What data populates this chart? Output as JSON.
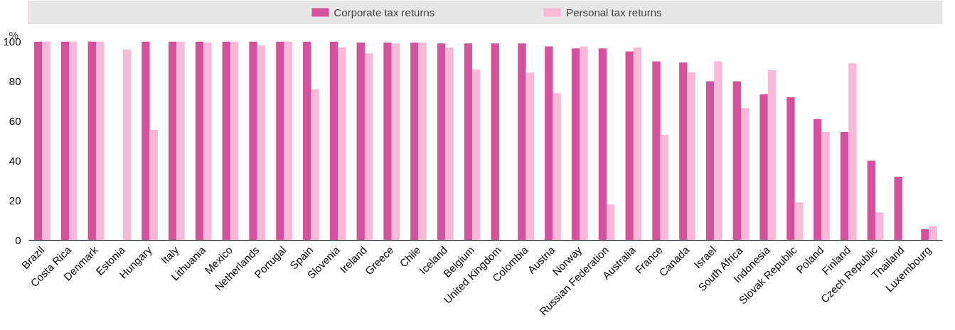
{
  "chart_data": {
    "type": "bar",
    "ylabel": "%",
    "categories": [
      "Brazil",
      "Costa Rica",
      "Denmark",
      "Estonia",
      "Hungary",
      "Italy",
      "Lithuania",
      "Mexico",
      "Netherlands",
      "Portugal",
      "Spain",
      "Slovenia",
      "Ireland",
      "Greece",
      "Chile",
      "Iceland",
      "Belgium",
      "United Kingdom",
      "Colombia",
      "Austria",
      "Norway",
      "Russian Federation",
      "Australia",
      "France",
      "Canada",
      "Israel",
      "South Africa",
      "Indonesia",
      "Slovak Republic",
      "Poland",
      "Finland",
      "Czech Republic",
      "Thailand",
      "Luxembourg"
    ],
    "series": [
      {
        "name": "Corporate tax returns",
        "color": "#d4519c",
        "values": [
          100,
          100,
          100,
          null,
          100,
          100,
          100,
          100,
          100,
          100,
          100,
          100,
          99.5,
          99.5,
          99.5,
          99,
          99,
          99,
          99,
          97.5,
          96.5,
          96.5,
          95,
          90,
          89.5,
          80,
          80,
          73.5,
          72,
          61,
          54.5,
          40,
          32,
          5.5
        ]
      },
      {
        "name": "Personal tax returns",
        "color": "#f7b9d5",
        "values": [
          100,
          100,
          100,
          96,
          55.5,
          100,
          99.5,
          100,
          98,
          100,
          76,
          97,
          94,
          99,
          99.5,
          97,
          86,
          null,
          84.5,
          74,
          97.5,
          18,
          97,
          53,
          84.5,
          90,
          66.5,
          85.5,
          19,
          54.5,
          89,
          14,
          null,
          7
        ]
      }
    ],
    "ylim": [
      0,
      100
    ],
    "yticks": [
      0,
      20,
      40,
      60,
      80,
      100
    ],
    "legend": "top"
  }
}
